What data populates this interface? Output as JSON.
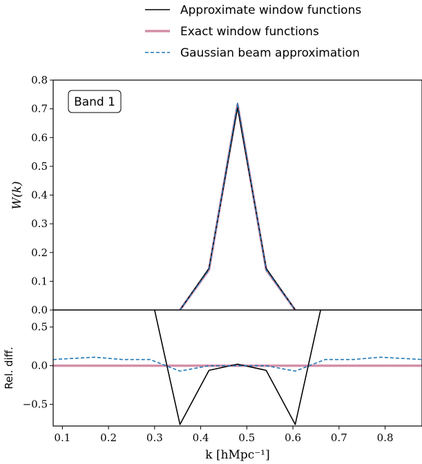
{
  "chart_data": [
    {
      "type": "line",
      "panel": "top",
      "annotation": "Band 1",
      "ylabel": "W(k)",
      "xlim": [
        0.08,
        0.88
      ],
      "ylim": [
        0.0,
        0.8
      ],
      "yticks": [
        0.0,
        0.1,
        0.2,
        0.3,
        0.4,
        0.5,
        0.6,
        0.7,
        0.8
      ],
      "ytick_labels": [
        "0.0",
        "0.1",
        "0.2",
        "0.3",
        "0.4",
        "0.5",
        "0.6",
        "0.7",
        "0.8"
      ],
      "series": [
        {
          "name": "Approximate window functions",
          "color": "#000000",
          "style": "solid",
          "x": [
            0.08,
            0.355,
            0.418,
            0.48,
            0.542,
            0.605,
            0.88
          ],
          "y": [
            0.0,
            0.0,
            0.145,
            0.705,
            0.145,
            0.0,
            0.0
          ]
        },
        {
          "name": "Exact window functions",
          "color": "#d48fa8",
          "style": "solid-thick",
          "x": [
            0.355,
            0.418,
            0.48,
            0.542,
            0.605
          ],
          "y": [
            0.0,
            0.14,
            0.715,
            0.14,
            0.0
          ]
        },
        {
          "name": "Gaussian beam approximation",
          "color": "#1f77b4",
          "style": "dashed",
          "x": [
            0.355,
            0.418,
            0.48,
            0.542,
            0.605
          ],
          "y": [
            0.0,
            0.14,
            0.72,
            0.14,
            0.0
          ]
        }
      ]
    },
    {
      "type": "line",
      "panel": "bottom",
      "ylabel": "Rel. diff.",
      "xlabel": "k [hMpc⁻¹]",
      "xlim": [
        0.08,
        0.88
      ],
      "ylim": [
        -0.78,
        0.72
      ],
      "xticks": [
        0.1,
        0.2,
        0.3,
        0.4,
        0.5,
        0.6,
        0.7,
        0.8
      ],
      "xtick_labels": [
        "0.1",
        "0.2",
        "0.3",
        "0.4",
        "0.5",
        "0.6",
        "0.7",
        "0.8"
      ],
      "yticks": [
        0.5,
        0.0,
        -0.5
      ],
      "ytick_labels": [
        "0.5",
        "0.0",
        "−0.5"
      ],
      "series": [
        {
          "name": "Approximate window functions",
          "color": "#000000",
          "style": "solid",
          "x": [
            0.297,
            0.355,
            0.418,
            0.48,
            0.542,
            0.605,
            0.663
          ],
          "y": [
            0.8,
            -0.76,
            -0.06,
            0.02,
            -0.06,
            -0.76,
            0.8
          ]
        },
        {
          "name": "Exact window functions",
          "color": "#d48fa8",
          "style": "solid-thick",
          "x": [
            0.08,
            0.88
          ],
          "y": [
            0.0,
            0.0
          ]
        },
        {
          "name": "Gaussian beam approximation",
          "color": "#1f77b4",
          "style": "dashed",
          "x": [
            0.08,
            0.17,
            0.23,
            0.29,
            0.355,
            0.418,
            0.48,
            0.542,
            0.605,
            0.67,
            0.73,
            0.79,
            0.88
          ],
          "y": [
            0.08,
            0.11,
            0.08,
            0.08,
            -0.07,
            0.0,
            0.0,
            0.0,
            -0.07,
            0.08,
            0.08,
            0.11,
            0.08
          ]
        }
      ]
    }
  ],
  "legend": {
    "items": [
      {
        "label": "Approximate window functions",
        "color": "#000000",
        "style": "solid"
      },
      {
        "label": "Exact window functions",
        "color": "#d48fa8",
        "style": "solid-thick"
      },
      {
        "label": "Gaussian beam approximation",
        "color": "#1f77b4",
        "style": "dashed"
      }
    ]
  }
}
